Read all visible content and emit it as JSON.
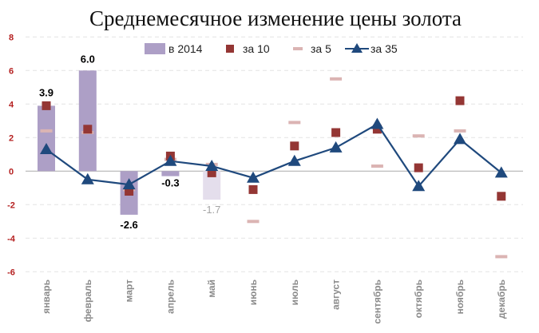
{
  "chart_data": {
    "type": "bar+line",
    "title": "Среднемесячное изменение цены золота",
    "categories": [
      "январь",
      "февраль",
      "март",
      "апрель",
      "май",
      "июнь",
      "июль",
      "август",
      "сентябрь",
      "октябрь",
      "ноябрь",
      "декабрь"
    ],
    "ylim": [
      -6,
      8
    ],
    "yticks": [
      -6,
      -4,
      -2,
      0,
      2,
      4,
      6,
      8
    ],
    "grid": true,
    "legend_position": "top",
    "series": [
      {
        "name": "в 2014",
        "kind": "bar",
        "color": "#ad9fc6",
        "faded_color": "#e4deec",
        "values": [
          3.9,
          6.0,
          -2.6,
          -0.3,
          -1.7,
          null,
          null,
          null,
          null,
          null,
          null,
          null
        ],
        "data_labels": [
          "3.9",
          "6.0",
          "-2.6",
          "-0.3",
          "-1.7"
        ]
      },
      {
        "name": "за 10",
        "kind": "square-marker",
        "color": "#943634",
        "values": [
          3.9,
          2.5,
          -1.2,
          0.9,
          -0.1,
          -1.1,
          1.5,
          2.3,
          2.5,
          0.2,
          4.2,
          -1.5
        ]
      },
      {
        "name": "за 5",
        "kind": "dash-marker",
        "color": "#dbb4b3",
        "values": [
          2.4,
          2.3,
          -1.1,
          0.7,
          0.4,
          -3.0,
          2.9,
          5.5,
          0.3,
          2.1,
          2.4,
          -5.1
        ]
      },
      {
        "name": "за 35",
        "kind": "line-triangle",
        "color": "#1f497d",
        "values": [
          1.3,
          -0.5,
          -0.8,
          0.6,
          0.3,
          -0.4,
          0.6,
          1.4,
          2.8,
          -0.9,
          1.9,
          -0.1
        ]
      }
    ]
  }
}
